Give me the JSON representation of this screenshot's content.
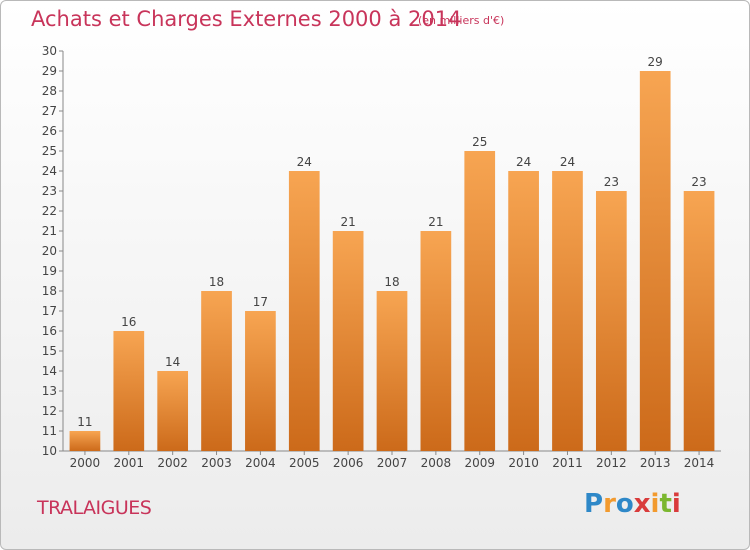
{
  "header": {
    "title": "Achats et Charges Externes 2000 à 2014",
    "subtitle": "(en milliers d'€)"
  },
  "footer": {
    "commune": "TRALAIGUES",
    "logo_letters": [
      "P",
      "r",
      "o",
      "x",
      "i",
      "t",
      "i"
    ],
    "logo_colors": [
      "#2e88c8",
      "#f29a2e",
      "#2e88c8",
      "#d93b3b",
      "#f29a2e",
      "#7bb72f",
      "#d93b3b"
    ]
  },
  "colors": {
    "bar_top": "#f7a552",
    "bar_bottom": "#cc6a1a",
    "text": "#444444",
    "accent": "#c8345a"
  },
  "chart_data": {
    "type": "bar",
    "categories": [
      "2000",
      "2001",
      "2002",
      "2003",
      "2004",
      "2005",
      "2006",
      "2007",
      "2008",
      "2009",
      "2010",
      "2011",
      "2012",
      "2013",
      "2014"
    ],
    "values": [
      11,
      16,
      14,
      18,
      17,
      24,
      21,
      18,
      21,
      25,
      24,
      24,
      23,
      29,
      23
    ],
    "ylim": [
      10,
      30
    ],
    "yticks": [
      10,
      11,
      12,
      13,
      14,
      15,
      16,
      17,
      18,
      19,
      20,
      21,
      22,
      23,
      24,
      25,
      26,
      27,
      28,
      29,
      30
    ],
    "grid": false,
    "title": "Achats et Charges Externes 2000 à 2014",
    "xlabel": "",
    "ylabel": ""
  }
}
